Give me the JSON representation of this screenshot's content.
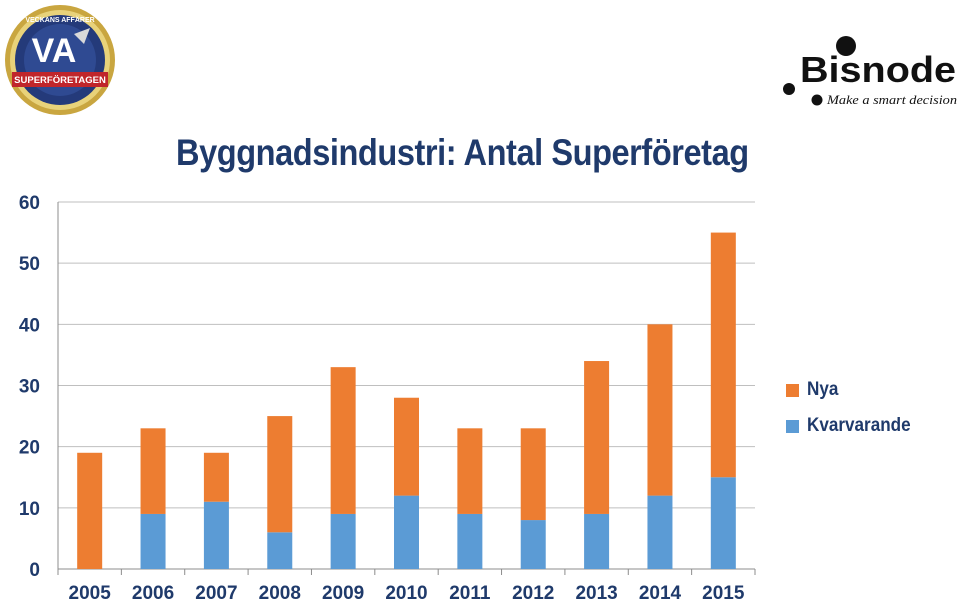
{
  "logos": {
    "va": {
      "top_text": "VECKANS AFFÄRER",
      "badge": "VA",
      "ribbon": "SUPERFÖRETAGEN"
    },
    "bisnode": {
      "name": "Bisnode",
      "tagline": "Make a smart decision"
    }
  },
  "colors": {
    "nya": "#ed7d31",
    "kvarvarande": "#5b9bd5",
    "text": "#1f3a6b",
    "grid": "#bfbfbf"
  },
  "chart_data": {
    "type": "bar",
    "stacked": true,
    "title": "Byggnadsindustri: Antal Superföretag",
    "xlabel": "",
    "ylabel": "",
    "categories": [
      "2005",
      "2006",
      "2007",
      "2008",
      "2009",
      "2010",
      "2011",
      "2012",
      "2013",
      "2014",
      "2015"
    ],
    "series": [
      {
        "name": "Kvarvarande",
        "values": [
          0,
          9,
          11,
          6,
          9,
          12,
          9,
          8,
          9,
          12,
          15
        ]
      },
      {
        "name": "Nya",
        "values": [
          19,
          14,
          8,
          19,
          24,
          16,
          14,
          15,
          25,
          28,
          40
        ]
      }
    ],
    "ylim": [
      0,
      60
    ],
    "yticks": [
      0,
      10,
      20,
      30,
      40,
      50,
      60
    ],
    "grid": true,
    "legend_position": "right"
  },
  "legend": [
    {
      "label": "Nya",
      "color": "#ed7d31"
    },
    {
      "label": "Kvarvarande",
      "color": "#5b9bd5"
    }
  ]
}
